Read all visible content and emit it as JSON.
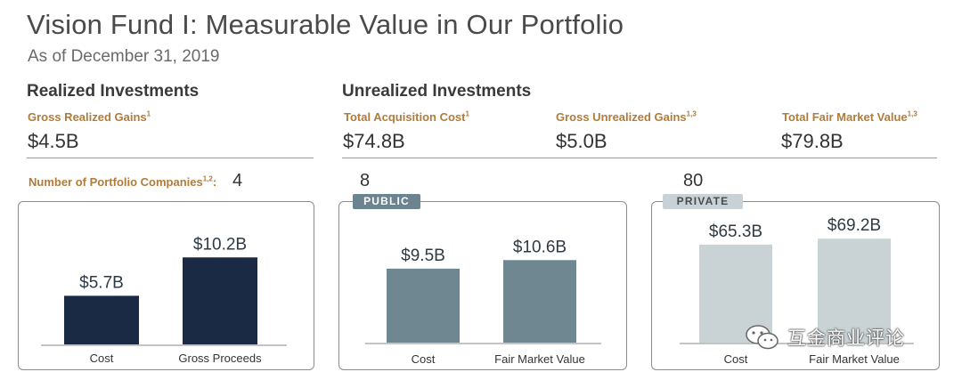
{
  "header": {
    "title": "Vision Fund I: Measurable Value in Our Portfolio",
    "subtitle": "As of December 31, 2019"
  },
  "realized": {
    "heading": "Realized Investments",
    "gross_gains_label": "Gross Realized Gains",
    "gross_gains_sup": "1",
    "gross_gains_value": "$4.5B",
    "companies_label": "Number of Portfolio Companies",
    "companies_sup": "1,2",
    "companies_colon": ":",
    "companies_value": "4"
  },
  "unrealized": {
    "heading": "Unrealized Investments",
    "acq_cost_label": "Total Acquisition Cost",
    "acq_cost_sup": "1",
    "acq_cost_value": "$74.8B",
    "unrealized_gains_label": "Gross Unrealized Gains",
    "unrealized_gains_sup": "1,3",
    "unrealized_gains_value": "$5.0B",
    "fmv_label": "Total Fair Market Value",
    "fmv_sup": "1,3",
    "fmv_value": "$79.8B",
    "public_count": "8",
    "public_tag": "PUBLIC",
    "private_count": "80",
    "private_tag": "PRIVATE"
  },
  "watermark": {
    "text": "互金商业评论",
    "icon": "wechat-icon"
  },
  "chart_data": [
    {
      "type": "bar",
      "categories": [
        "Cost",
        "Gross Proceeds"
      ],
      "values": [
        5.7,
        10.2
      ],
      "labels": [
        "$5.7B",
        "$10.2B"
      ],
      "color": "#1b2a44",
      "ylim": [
        0,
        12
      ]
    },
    {
      "type": "bar",
      "categories": [
        "Cost",
        "Fair Market Value"
      ],
      "values": [
        9.5,
        10.6
      ],
      "labels": [
        "$9.5B",
        "$10.6B"
      ],
      "color": "#6e8791",
      "ylim": [
        0,
        12
      ]
    },
    {
      "type": "bar",
      "categories": [
        "Cost",
        "Fair Market Value"
      ],
      "values": [
        65.3,
        69.2
      ],
      "labels": [
        "$65.3B",
        "$69.2B"
      ],
      "color": "#c9d3d6",
      "ylim": [
        0,
        80
      ]
    }
  ]
}
